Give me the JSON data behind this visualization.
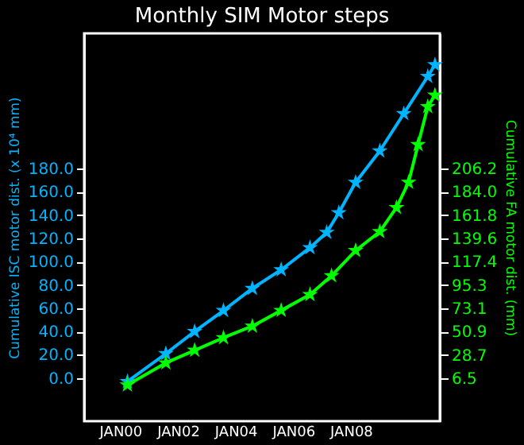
{
  "chart_data": {
    "type": "line",
    "title": "Monthly SIM Motor steps",
    "ylabel": "Cumulative ISC motor dist. (x 10⁴ mm)",
    "y2label": "Cumulative FA motor dist. (mm)",
    "xlim": [
      "1998-10",
      "2011-02"
    ],
    "xticks": [
      {
        "value": "2000-01",
        "label": "JAN00"
      },
      {
        "value": "2002-01",
        "label": "JAN02"
      },
      {
        "value": "2004-01",
        "label": "JAN04"
      },
      {
        "value": "2006-01",
        "label": "JAN06"
      },
      {
        "value": "2008-01",
        "label": "JAN08"
      }
    ],
    "ylim": [
      -37,
      296
    ],
    "yticks": [
      {
        "value": 0,
        "label": "0.0"
      },
      {
        "value": 20,
        "label": "20.0"
      },
      {
        "value": 40,
        "label": "40.0"
      },
      {
        "value": 60,
        "label": "60.0"
      },
      {
        "value": 80,
        "label": "80.0"
      },
      {
        "value": 100,
        "label": "100.0"
      },
      {
        "value": 120,
        "label": "120.0"
      },
      {
        "value": 140,
        "label": "140.0"
      },
      {
        "value": 160,
        "label": "160.0"
      },
      {
        "value": 180,
        "label": "180.0"
      }
    ],
    "y2lim": [
      -34.5,
      334.9
    ],
    "y2ticks": [
      6.5,
      28.7,
      50.9,
      73.1,
      95.3,
      117.4,
      139.6,
      161.8,
      {
        "value": 184,
        "label": "184.0"
      },
      206.2
    ],
    "grid": false,
    "marker": "star",
    "series": [
      {
        "color": "#00b4ff",
        "x": [
          "2000-04",
          "2001-08",
          "2002-08",
          "2003-08",
          "2004-08",
          "2005-08",
          "2006-08",
          "2007-03",
          "2007-08",
          "2008-03",
          "2009-01",
          "2009-11",
          "2010-09",
          "2010-12"
        ],
        "values": [
          -3,
          21,
          40,
          58,
          77,
          93,
          112,
          125,
          142,
          168,
          195,
          227,
          259,
          269
        ]
      },
      {
        "color": "#00ff00",
        "axis": "y2",
        "x": [
          "2000-04",
          "2001-08",
          "2002-08",
          "2003-08",
          "2004-08",
          "2005-08",
          "2006-08",
          "2007-05",
          "2008-03",
          "2009-01",
          "2009-08",
          "2010-01",
          "2010-05",
          "2010-09",
          "2010-12"
        ],
        "values": [
          0,
          21,
          33,
          45,
          56,
          71,
          86,
          104,
          128,
          146,
          169,
          193,
          229,
          265,
          276
        ]
      }
    ]
  }
}
